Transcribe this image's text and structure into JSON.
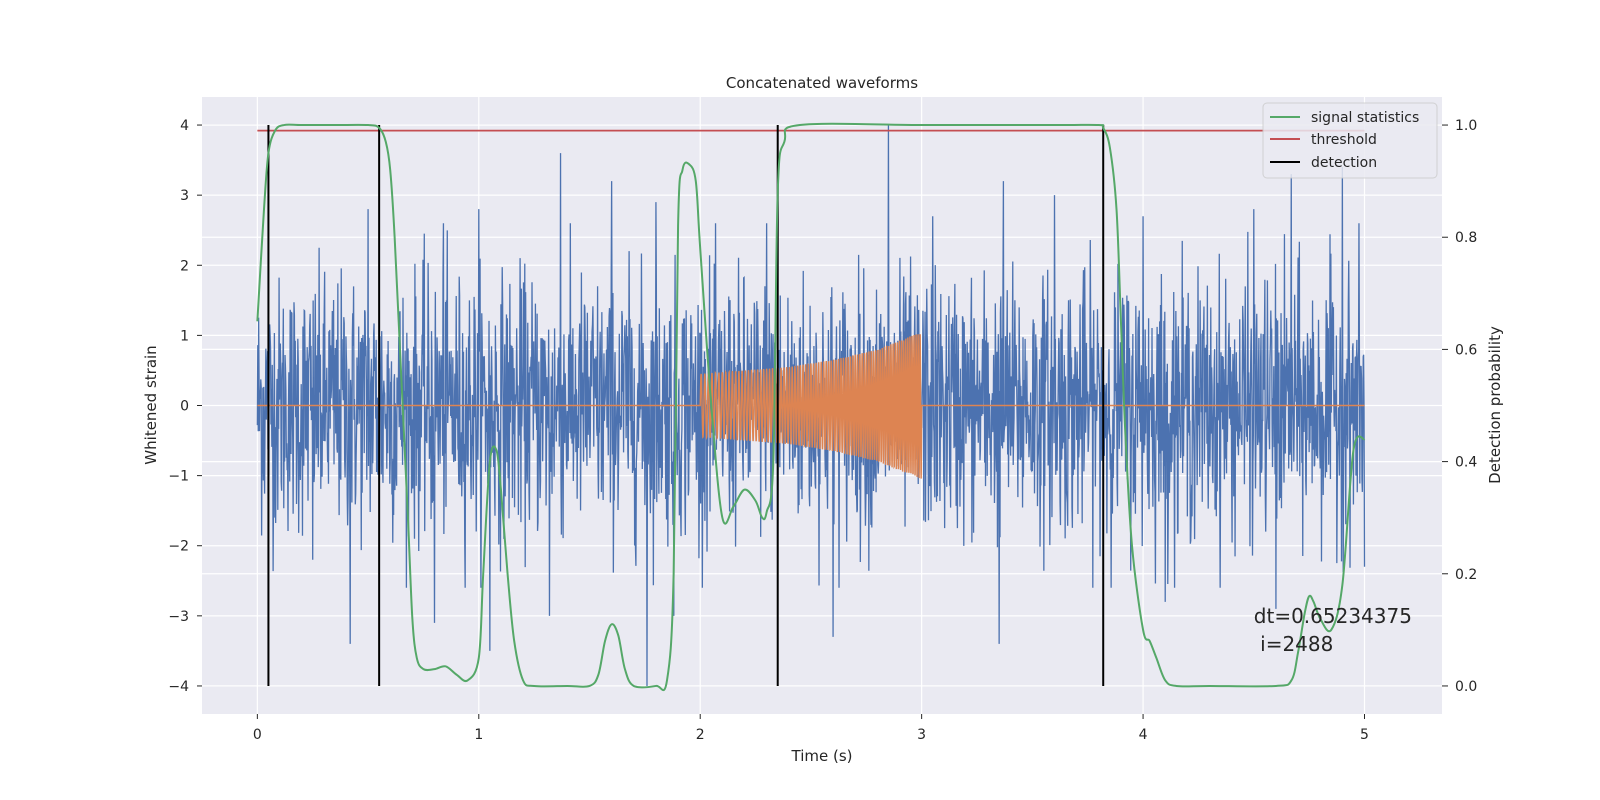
{
  "chart_data": {
    "type": "line",
    "title": "Concatenated waveforms",
    "xlabel": "Time (s)",
    "ylabel": "Whitened strain",
    "y2label": "Detection probability",
    "xlim": [
      -0.25,
      5.35
    ],
    "ylim": [
      -4.4,
      4.4
    ],
    "y2lim": [
      -0.05,
      1.05
    ],
    "xticks": [
      0,
      1,
      2,
      3,
      4,
      5
    ],
    "yticks": [
      -4,
      -3,
      -2,
      -1,
      0,
      1,
      2,
      3,
      4
    ],
    "y2ticks": [
      0.0,
      0.2,
      0.4,
      0.6,
      0.8,
      1.0
    ],
    "xtick_labels": [
      "0",
      "1",
      "2",
      "3",
      "4",
      "5"
    ],
    "ytick_labels": [
      "−4",
      "−3",
      "−2",
      "−1",
      "0",
      "1",
      "2",
      "3",
      "4"
    ],
    "y2tick_labels": [
      "0.0",
      "0.2",
      "0.4",
      "0.6",
      "0.8",
      "1.0"
    ],
    "grid": true,
    "legend_position": "top-right",
    "colors": {
      "background": "#eaeaf2",
      "grid": "#ffffff",
      "strain": "#4c72b0",
      "template": "#dd8452",
      "signal_statistics": "#55a868",
      "threshold": "#c44e52",
      "detection": "#000000"
    },
    "series": [
      {
        "name": "",
        "axis": "left",
        "kind": "whitened-strain-noise",
        "x_range": [
          0,
          5
        ],
        "envelope_typical": [
          -1.5,
          1.5
        ],
        "peaks": [
          [
            0.25,
            2.6
          ],
          [
            0.25,
            -2.2
          ],
          [
            0.5,
            2.8
          ],
          [
            0.42,
            -3.4
          ],
          [
            0.84,
            2.6
          ],
          [
            0.8,
            -3.1
          ],
          [
            1.0,
            2.8
          ],
          [
            1.05,
            -3.5
          ],
          [
            1.37,
            3.6
          ],
          [
            1.32,
            -3.0
          ],
          [
            1.6,
            3.2
          ],
          [
            1.76,
            -4.0
          ],
          [
            1.8,
            2.9
          ],
          [
            1.88,
            -3.0
          ],
          [
            2.3,
            2.6
          ],
          [
            2.35,
            -3.0
          ],
          [
            2.6,
            3.2
          ],
          [
            2.85,
            4.0
          ],
          [
            2.6,
            -3.3
          ],
          [
            3.05,
            2.7
          ],
          [
            3.37,
            3.2
          ],
          [
            3.35,
            -3.4
          ],
          [
            3.6,
            3.0
          ],
          [
            4.0,
            2.7
          ],
          [
            4.1,
            -2.8
          ],
          [
            4.5,
            2.8
          ],
          [
            4.67,
            3.3
          ],
          [
            4.9,
            3.4
          ],
          [
            4.6,
            -2.9
          ],
          [
            5.0,
            -2.3
          ]
        ]
      },
      {
        "name": "",
        "axis": "left",
        "kind": "template-waveform",
        "x": [
          0,
          2.0,
          2.2,
          2.4,
          2.6,
          2.8,
          3.0,
          3.0,
          5.0
        ],
        "amplitude": [
          0.0,
          0.45,
          0.5,
          0.55,
          0.65,
          0.8,
          1.05,
          0.0,
          0.0
        ]
      },
      {
        "name": "signal statistics",
        "axis": "right",
        "x": [
          0.0,
          0.03,
          0.05,
          0.08,
          0.12,
          0.2,
          0.35,
          0.5,
          0.55,
          0.58,
          0.6,
          0.62,
          0.65,
          0.68,
          0.7,
          0.72,
          0.75,
          0.8,
          0.85,
          0.9,
          0.95,
          1.0,
          1.02,
          1.05,
          1.08,
          1.1,
          1.13,
          1.16,
          1.2,
          1.25,
          1.4,
          1.5,
          1.54,
          1.57,
          1.6,
          1.63,
          1.66,
          1.7,
          1.8,
          1.85,
          1.88,
          1.9,
          1.92,
          1.95,
          1.98,
          2.0,
          2.05,
          2.1,
          2.15,
          2.2,
          2.25,
          2.28,
          2.3,
          2.33,
          2.35,
          2.38,
          2.45,
          3.0,
          3.6,
          3.8,
          3.82,
          3.85,
          3.88,
          3.9,
          3.92,
          3.95,
          4.0,
          4.03,
          4.06,
          4.1,
          4.15,
          4.3,
          4.6,
          4.67,
          4.7,
          4.73,
          4.75,
          4.77,
          4.8,
          4.85,
          4.9,
          4.95,
          5.0
        ],
        "y": [
          0.65,
          0.85,
          0.95,
          0.99,
          1.0,
          1.0,
          1.0,
          1.0,
          0.995,
          0.97,
          0.92,
          0.8,
          0.55,
          0.3,
          0.12,
          0.05,
          0.03,
          0.03,
          0.035,
          0.02,
          0.01,
          0.05,
          0.2,
          0.4,
          0.42,
          0.35,
          0.2,
          0.08,
          0.01,
          0.0,
          0.0,
          0.0,
          0.02,
          0.08,
          0.11,
          0.09,
          0.03,
          0.0,
          0.0,
          0.01,
          0.2,
          0.82,
          0.92,
          0.93,
          0.9,
          0.78,
          0.5,
          0.3,
          0.32,
          0.35,
          0.33,
          0.3,
          0.31,
          0.4,
          0.88,
          0.97,
          1.0,
          1.0,
          1.0,
          1.0,
          0.995,
          0.96,
          0.85,
          0.65,
          0.45,
          0.25,
          0.1,
          0.08,
          0.05,
          0.01,
          0.0,
          0.0,
          0.0,
          0.01,
          0.06,
          0.13,
          0.16,
          0.15,
          0.12,
          0.1,
          0.18,
          0.42,
          0.44
        ]
      },
      {
        "name": "threshold",
        "axis": "right",
        "x": [
          0,
          5
        ],
        "y": [
          0.99,
          0.99
        ]
      },
      {
        "name": "detection",
        "axis": "left",
        "x": [
          0.05,
          0.55,
          2.35,
          3.82
        ],
        "y_range": [
          -4,
          4
        ]
      }
    ],
    "annotation": {
      "line1": "dt=0.65234375",
      "line2": " i=2488",
      "x": 4.5,
      "y": -3.1
    }
  }
}
